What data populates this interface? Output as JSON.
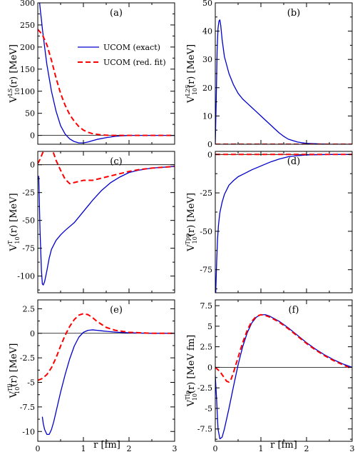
{
  "figure": {
    "xlabel_left": "r [fm]",
    "xlabel_right": "r [fm]",
    "legend": {
      "exact": "UCOM (exact)",
      "fit": "UCOM (red. fit)"
    }
  },
  "chart_data": [
    {
      "type": "line",
      "panel_label": "(a)",
      "col": 0,
      "row": 0,
      "ylabel_main": "V",
      "ylabel_sup": "LS",
      "ylabel_sub": "10",
      "ylabel_tail": "(r) [MeV]",
      "xlim": [
        0,
        3
      ],
      "ylim": [
        -20,
        300
      ],
      "xticks": [
        0,
        1,
        2,
        3
      ],
      "yticks": [
        0,
        50,
        100,
        150,
        200,
        250,
        300
      ],
      "ytick_labels": [
        "0",
        "50",
        "100",
        "150",
        "200",
        "250",
        "300"
      ],
      "xticks_labeled": false,
      "has_legend": true,
      "series": [
        {
          "name": "UCOM (exact)",
          "color": "#0000cc",
          "dash": "solid",
          "x": [
            0.04,
            0.06,
            0.08,
            0.1,
            0.15,
            0.2,
            0.3,
            0.4,
            0.5,
            0.6,
            0.7,
            0.8,
            0.9,
            1.0,
            1.1,
            1.2,
            1.3,
            1.5,
            1.7,
            2.0,
            2.5,
            3.0
          ],
          "y": [
            300,
            280,
            262,
            242,
            200,
            160,
            100,
            55,
            22,
            3,
            -8,
            -14,
            -17,
            -17,
            -15,
            -12,
            -9,
            -5,
            -2,
            0,
            0,
            0
          ]
        },
        {
          "name": "UCOM (red. fit)",
          "color": "#ff0000",
          "dash": "dashed",
          "x": [
            0,
            0.1,
            0.2,
            0.3,
            0.4,
            0.5,
            0.6,
            0.7,
            0.8,
            0.9,
            1.0,
            1.1,
            1.2,
            1.4,
            1.6,
            1.8,
            2.0,
            2.5,
            3.0
          ],
          "y": [
            240,
            228,
            205,
            170,
            130,
            95,
            68,
            47,
            32,
            20,
            12,
            7,
            4,
            1,
            0,
            0,
            0,
            0,
            0
          ]
        }
      ]
    },
    {
      "type": "line",
      "panel_label": "(b)",
      "col": 1,
      "row": 0,
      "ylabel_main": "V",
      "ylabel_sup": "L2S",
      "ylabel_sub": "10",
      "ylabel_tail": "(r) [MeV]",
      "xlim": [
        0,
        3
      ],
      "ylim": [
        0,
        50
      ],
      "xticks": [
        0,
        1,
        2,
        3
      ],
      "yticks": [
        0,
        10,
        20,
        30,
        40,
        50
      ],
      "ytick_labels": [
        "0",
        "10",
        "20",
        "30",
        "40",
        "50"
      ],
      "xticks_labeled": false,
      "has_legend": false,
      "series": [
        {
          "name": "UCOM (exact)",
          "color": "#0000cc",
          "dash": "solid",
          "x": [
            0,
            0.02,
            0.04,
            0.06,
            0.08,
            0.1,
            0.12,
            0.15,
            0.2,
            0.3,
            0.4,
            0.5,
            0.6,
            0.7,
            0.8,
            0.9,
            1.0,
            1.1,
            1.2,
            1.3,
            1.4,
            1.5,
            1.6,
            1.8,
            2.0,
            2.5,
            3.0
          ],
          "y": [
            0,
            15,
            33,
            41,
            43.5,
            44,
            42,
            37,
            31,
            25,
            21,
            18,
            16,
            14.5,
            13,
            11.5,
            10,
            8.5,
            7,
            5.5,
            4,
            2.8,
            1.8,
            0.8,
            0.3,
            0,
            0
          ]
        },
        {
          "name": "UCOM (red. fit)",
          "color": "#ff0000",
          "dash": "dashed",
          "x": [
            0,
            1,
            2,
            3
          ],
          "y": [
            0,
            0,
            0,
            0
          ]
        }
      ]
    },
    {
      "type": "line",
      "panel_label": "(c)",
      "col": 0,
      "row": 1,
      "ylabel_main": "V",
      "ylabel_sup": "T",
      "ylabel_sub": "10",
      "ylabel_tail": "(r) [MeV]",
      "xlim": [
        0,
        3
      ],
      "ylim": [
        -115,
        12
      ],
      "xticks": [
        0,
        1,
        2,
        3
      ],
      "yticks": [
        -100,
        -75,
        -50,
        -25,
        0
      ],
      "ytick_labels": [
        "-100",
        "-75",
        "-50",
        "-25",
        "0"
      ],
      "xticks_labeled": false,
      "has_legend": false,
      "series": [
        {
          "name": "UCOM (exact)",
          "color": "#0000cc",
          "dash": "solid",
          "x": [
            0.02,
            0.05,
            0.08,
            0.1,
            0.12,
            0.15,
            0.2,
            0.25,
            0.3,
            0.4,
            0.5,
            0.6,
            0.8,
            1.0,
            1.2,
            1.4,
            1.6,
            1.8,
            2.0,
            2.2,
            2.5,
            3.0
          ],
          "y": [
            -10,
            -60,
            -95,
            -107,
            -108,
            -105,
            -95,
            -84,
            -76,
            -68,
            -63,
            -59,
            -52,
            -42,
            -32,
            -23,
            -16,
            -11,
            -7,
            -5,
            -3,
            -1.5
          ]
        },
        {
          "name": "UCOM (red. fit)",
          "color": "#ff0000",
          "dash": "dashed",
          "x": [
            0,
            0.05,
            0.1,
            0.15,
            0.2,
            0.25,
            0.3,
            0.35,
            0.4,
            0.5,
            0.6,
            0.7,
            0.8,
            0.9,
            1.0,
            1.1,
            1.2,
            1.3,
            1.4,
            1.6,
            1.8,
            2.0,
            2.2,
            2.5,
            3.0
          ],
          "y": [
            1,
            5,
            10,
            14,
            17,
            18,
            15,
            10,
            4,
            -5,
            -13,
            -17,
            -16,
            -15,
            -14,
            -14,
            -14,
            -13,
            -12,
            -10,
            -8,
            -6,
            -4.5,
            -3,
            -1.5
          ]
        }
      ]
    },
    {
      "type": "line",
      "panel_label": "(d)",
      "col": 1,
      "row": 1,
      "ylabel_main": "V",
      "ylabel_sup": "Tpp",
      "ylabel_sub": "10",
      "ylabel_tail": "(r) [MeV]",
      "xlim": [
        0,
        3
      ],
      "ylim": [
        -90,
        2
      ],
      "xticks": [
        0,
        1,
        2,
        3
      ],
      "yticks": [
        -75,
        -50,
        -25,
        0
      ],
      "ytick_labels": [
        "-75",
        "-50",
        "-25",
        "0"
      ],
      "xticks_labeled": false,
      "has_legend": false,
      "series": [
        {
          "name": "UCOM (exact)",
          "color": "#0000cc",
          "dash": "solid",
          "x": [
            0.01,
            0.03,
            0.05,
            0.07,
            0.1,
            0.15,
            0.2,
            0.3,
            0.4,
            0.5,
            0.6,
            0.8,
            1.0,
            1.2,
            1.4,
            1.6,
            1.8,
            2.0,
            2.5,
            3.0
          ],
          "y": [
            -90,
            -70,
            -55,
            -46,
            -38,
            -31,
            -26,
            -20,
            -17,
            -14.5,
            -13,
            -10,
            -7.5,
            -5,
            -3,
            -1.5,
            -0.8,
            -0.3,
            0,
            0
          ]
        },
        {
          "name": "UCOM (red. fit)",
          "color": "#ff0000",
          "dash": "dashed",
          "x": [
            0,
            0.5,
            1.0,
            1.5,
            2.0,
            2.5,
            3.0
          ],
          "y": [
            0,
            0,
            0,
            0,
            0,
            0,
            0
          ]
        }
      ]
    },
    {
      "type": "line",
      "panel_label": "(e)",
      "col": 0,
      "row": 2,
      "ylabel_main": "V",
      "ylabel_sup": "Tll",
      "ylabel_sub": "10",
      "ylabel_tail": "(r) [MeV]",
      "xlim": [
        0,
        3
      ],
      "ylim": [
        -11,
        3.4
      ],
      "xticks": [
        0,
        1,
        2,
        3
      ],
      "yticks": [
        -10,
        -7.5,
        -5,
        -2.5,
        0,
        2.5
      ],
      "ytick_labels": [
        "-10",
        "-7.5",
        "-5",
        "-2.5",
        "0",
        "2.5"
      ],
      "xticks_labeled": true,
      "xtick_labels": [
        "0",
        "1",
        "2",
        "3"
      ],
      "has_legend": false,
      "series": [
        {
          "name": "UCOM (exact)",
          "color": "#0000cc",
          "dash": "solid",
          "x": [
            0.1,
            0.12,
            0.15,
            0.2,
            0.25,
            0.3,
            0.35,
            0.4,
            0.5,
            0.6,
            0.7,
            0.8,
            0.9,
            1.0,
            1.1,
            1.2,
            1.3,
            1.4,
            1.5,
            1.7,
            2.0,
            2.5,
            3.0
          ],
          "y": [
            -8.5,
            -9.2,
            -9.8,
            -10.3,
            -10.3,
            -9.8,
            -9.0,
            -8.0,
            -6.0,
            -4.2,
            -2.6,
            -1.3,
            -0.4,
            0.1,
            0.3,
            0.35,
            0.3,
            0.25,
            0.2,
            0.12,
            0.05,
            0,
            0
          ]
        },
        {
          "name": "UCOM (red. fit)",
          "color": "#ff0000",
          "dash": "dashed",
          "x": [
            0,
            0.1,
            0.2,
            0.3,
            0.4,
            0.5,
            0.6,
            0.7,
            0.8,
            0.9,
            1.0,
            1.1,
            1.2,
            1.3,
            1.4,
            1.5,
            1.7,
            2.0,
            2.5,
            3.0
          ],
          "y": [
            -4.8,
            -4.6,
            -4.2,
            -3.5,
            -2.5,
            -1.3,
            -0.2,
            0.7,
            1.4,
            1.85,
            2.0,
            1.9,
            1.6,
            1.2,
            0.9,
            0.6,
            0.3,
            0.1,
            0,
            0
          ]
        }
      ]
    },
    {
      "type": "line",
      "panel_label": "(f)",
      "col": 1,
      "row": 2,
      "ylabel_main": "V",
      "ylabel_sup": "Tlp",
      "ylabel_sub": "10",
      "ylabel_tail": "(r) [MeV fm]",
      "xlim": [
        0,
        3
      ],
      "ylim": [
        -9,
        8.2
      ],
      "xticks": [
        0,
        1,
        2,
        3
      ],
      "yticks": [
        -7.5,
        -5,
        -2.5,
        0,
        2.5,
        5,
        7.5
      ],
      "ytick_labels": [
        "-7.5",
        "-5",
        "-2.5",
        "0",
        "2.5",
        "5",
        "7.5"
      ],
      "xticks_labeled": true,
      "xtick_labels": [
        "0",
        "1",
        "2",
        "3"
      ],
      "has_legend": false,
      "series": [
        {
          "name": "UCOM (exact)",
          "color": "#0000cc",
          "dash": "solid",
          "x": [
            0,
            0.03,
            0.06,
            0.1,
            0.15,
            0.2,
            0.3,
            0.4,
            0.5,
            0.6,
            0.7,
            0.8,
            0.9,
            1.0,
            1.1,
            1.2,
            1.4,
            1.6,
            1.8,
            2.0,
            2.2,
            2.4,
            2.6,
            2.8,
            3.0
          ],
          "y": [
            -1,
            -4,
            -7.5,
            -8.7,
            -8.5,
            -7.5,
            -5,
            -2.3,
            0.3,
            2.5,
            4.2,
            5.4,
            6.1,
            6.4,
            6.4,
            6.2,
            5.6,
            4.8,
            3.9,
            3.0,
            2.2,
            1.5,
            0.9,
            0.4,
            0
          ]
        },
        {
          "name": "UCOM (red. fit)",
          "color": "#ff0000",
          "dash": "dashed",
          "x": [
            0,
            0.1,
            0.2,
            0.25,
            0.3,
            0.35,
            0.4,
            0.5,
            0.6,
            0.7,
            0.8,
            0.9,
            1.0,
            1.1,
            1.2,
            1.4,
            1.6,
            1.8,
            2.0,
            2.2,
            2.4,
            2.6,
            2.8,
            3.0
          ],
          "y": [
            0,
            -0.5,
            -1.3,
            -1.7,
            -1.8,
            -1.4,
            -0.6,
            1.2,
            3.0,
            4.5,
            5.6,
            6.2,
            6.4,
            6.3,
            6.1,
            5.5,
            4.7,
            3.8,
            2.9,
            2.1,
            1.4,
            0.8,
            0.3,
            -0.2
          ]
        }
      ]
    }
  ]
}
